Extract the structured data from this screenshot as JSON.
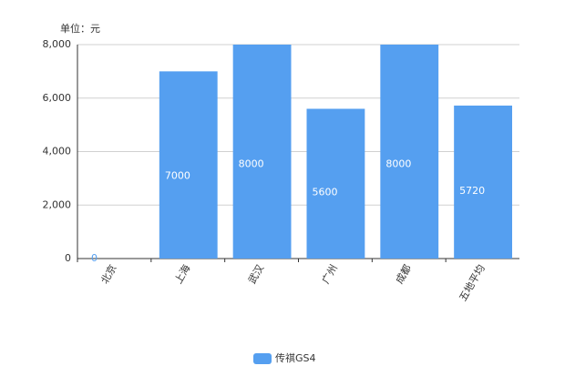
{
  "chart_data": {
    "type": "bar",
    "unit_label": "单位：元",
    "categories": [
      "北京",
      "上海",
      "武汉",
      "广州",
      "成都",
      "五地平均"
    ],
    "series": [
      {
        "name": "传祺GS4",
        "color": "#559ff0",
        "values": [
          0,
          7000,
          8000,
          5600,
          8000,
          5720
        ]
      }
    ],
    "ylim": [
      0,
      8000
    ],
    "yticks": [
      0,
      {
        "value": 2000,
        "label": "2,000"
      },
      {
        "value": 4000,
        "label": "4,000"
      },
      {
        "value": 6000,
        "label": "6,000"
      },
      {
        "value": 8000,
        "label": "8,000"
      }
    ],
    "grid": true,
    "legend": "bottom"
  }
}
